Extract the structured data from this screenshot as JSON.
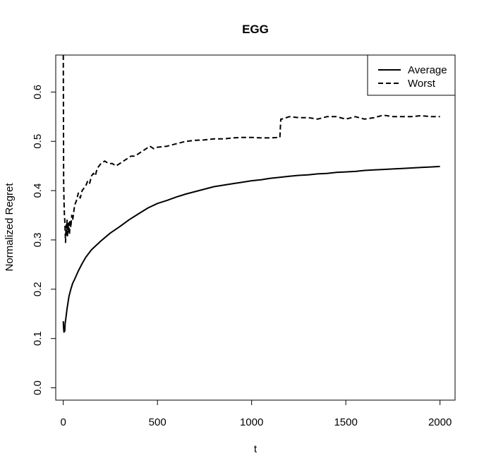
{
  "chart_data": {
    "type": "line",
    "title": "EGG",
    "xlabel": "t",
    "ylabel": "Normalized Regret",
    "xlim": [
      -40,
      2080
    ],
    "ylim": [
      -0.025,
      0.675
    ],
    "xticks": [
      0,
      500,
      1000,
      1500,
      2000
    ],
    "yticks": [
      0.0,
      0.1,
      0.2,
      0.3,
      0.4,
      0.5,
      0.6
    ],
    "grid": false,
    "legend_position": "top-right",
    "series": [
      {
        "name": "Average",
        "style": "solid",
        "color": "#000000",
        "x": [
          0,
          2,
          4,
          6,
          8,
          10,
          15,
          20,
          30,
          40,
          50,
          60,
          80,
          100,
          120,
          150,
          200,
          250,
          300,
          350,
          400,
          450,
          500,
          550,
          600,
          650,
          700,
          750,
          800,
          850,
          900,
          950,
          1000,
          1050,
          1100,
          1150,
          1200,
          1250,
          1300,
          1350,
          1400,
          1450,
          1500,
          1550,
          1600,
          1650,
          1700,
          1750,
          1800,
          1850,
          1900,
          1950,
          2000
        ],
        "y": [
          0.135,
          0.12,
          0.113,
          0.118,
          0.115,
          0.13,
          0.145,
          0.16,
          0.185,
          0.2,
          0.212,
          0.22,
          0.237,
          0.252,
          0.265,
          0.28,
          0.298,
          0.314,
          0.327,
          0.341,
          0.353,
          0.365,
          0.374,
          0.38,
          0.387,
          0.393,
          0.398,
          0.403,
          0.408,
          0.411,
          0.414,
          0.417,
          0.42,
          0.422,
          0.425,
          0.427,
          0.429,
          0.431,
          0.432,
          0.434,
          0.435,
          0.437,
          0.438,
          0.439,
          0.441,
          0.442,
          0.443,
          0.444,
          0.445,
          0.446,
          0.447,
          0.448,
          0.449
        ]
      },
      {
        "name": "Worst",
        "style": "dashed",
        "color": "#000000",
        "x": [
          0,
          2,
          4,
          6,
          8,
          10,
          12,
          15,
          18,
          20,
          22,
          25,
          28,
          30,
          33,
          36,
          40,
          45,
          50,
          55,
          60,
          70,
          80,
          90,
          100,
          110,
          120,
          130,
          140,
          150,
          160,
          170,
          180,
          190,
          200,
          220,
          240,
          260,
          280,
          300,
          320,
          340,
          360,
          380,
          400,
          420,
          440,
          460,
          480,
          500,
          550,
          600,
          650,
          700,
          750,
          800,
          850,
          900,
          950,
          1000,
          1050,
          1100,
          1150,
          1155,
          1160,
          1200,
          1250,
          1300,
          1350,
          1400,
          1450,
          1500,
          1550,
          1600,
          1650,
          1700,
          1750,
          1800,
          1850,
          1900,
          1950,
          2000
        ],
        "y": [
          0.68,
          0.42,
          0.38,
          0.35,
          0.34,
          0.32,
          0.295,
          0.33,
          0.31,
          0.34,
          0.305,
          0.335,
          0.315,
          0.335,
          0.31,
          0.34,
          0.325,
          0.35,
          0.34,
          0.355,
          0.37,
          0.38,
          0.395,
          0.385,
          0.4,
          0.405,
          0.41,
          0.42,
          0.415,
          0.43,
          0.435,
          0.43,
          0.445,
          0.45,
          0.455,
          0.46,
          0.455,
          0.455,
          0.45,
          0.455,
          0.46,
          0.465,
          0.47,
          0.47,
          0.475,
          0.48,
          0.485,
          0.49,
          0.485,
          0.488,
          0.49,
          0.495,
          0.5,
          0.502,
          0.503,
          0.505,
          0.505,
          0.507,
          0.508,
          0.508,
          0.507,
          0.507,
          0.508,
          0.545,
          0.545,
          0.55,
          0.548,
          0.548,
          0.545,
          0.55,
          0.55,
          0.545,
          0.55,
          0.545,
          0.548,
          0.553,
          0.55,
          0.55,
          0.55,
          0.552,
          0.55,
          0.55
        ]
      }
    ]
  }
}
